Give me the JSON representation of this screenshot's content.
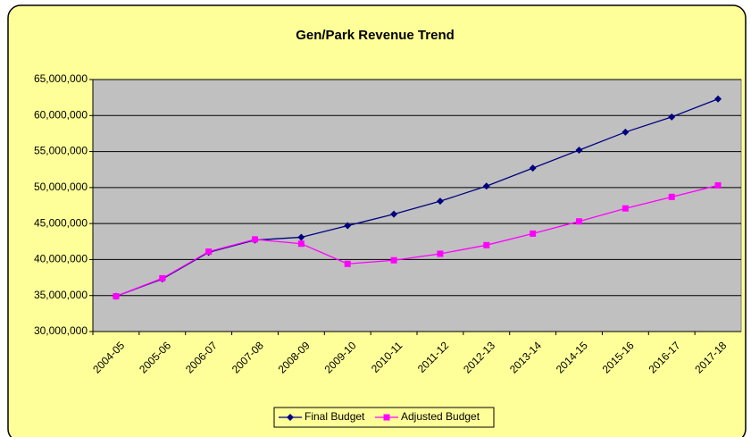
{
  "chart_data": {
    "type": "line",
    "title": "Gen/Park Revenue Trend",
    "categories": [
      "2004-05",
      "2005-06",
      "2006-07",
      "2007-08",
      "2008-09",
      "2009-10",
      "2010-11",
      "2011-12",
      "2012-13",
      "2013-14",
      "2014-15",
      "2015-16",
      "2016-17",
      "2017-18"
    ],
    "series": [
      {
        "name": "Final Budget",
        "color": "#000080",
        "marker": "diamond",
        "values": [
          34900000,
          37300000,
          41000000,
          42700000,
          43100000,
          44700000,
          46300000,
          48100000,
          50200000,
          52700000,
          55200000,
          57700000,
          59800000,
          62300000
        ]
      },
      {
        "name": "Adjusted Budget",
        "color": "#ff00ff",
        "marker": "square",
        "values": [
          34900000,
          37400000,
          41100000,
          42800000,
          42200000,
          39400000,
          39900000,
          40800000,
          42000000,
          43600000,
          45300000,
          47100000,
          48700000,
          50300000
        ]
      }
    ],
    "ylim": [
      30000000,
      65000000
    ],
    "yticks": [
      {
        "value": 30000000,
        "label": "30,000,000"
      },
      {
        "value": 35000000,
        "label": "35,000,000"
      },
      {
        "value": 40000000,
        "label": "40,000,000"
      },
      {
        "value": 45000000,
        "label": "45,000,000"
      },
      {
        "value": 50000000,
        "label": "50,000,000"
      },
      {
        "value": 55000000,
        "label": "55,000,000"
      },
      {
        "value": 60000000,
        "label": "60,000,000"
      },
      {
        "value": 65000000,
        "label": "65,000,000"
      }
    ],
    "grid": true,
    "legend": "bottom"
  }
}
